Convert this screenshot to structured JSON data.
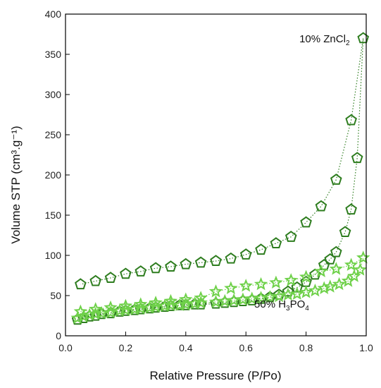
{
  "chart_data": {
    "type": "scatter",
    "xlabel": "Relative Pressure (P/Po)",
    "ylabel": "Volume STP (cm³.g⁻¹)",
    "xlim": [
      0.0,
      1.0
    ],
    "ylim": [
      0,
      400
    ],
    "xticks": [
      "0.0",
      "0.2",
      "0.4",
      "0.6",
      "0.8",
      "1.0"
    ],
    "yticks": [
      "0",
      "50",
      "100",
      "150",
      "200",
      "250",
      "300",
      "350",
      "400"
    ],
    "grid": false,
    "annotations": [
      {
        "parts": [
          "10% ZnCl",
          "2",
          ""
        ],
        "x": 0.945,
        "y": 365
      },
      {
        "parts": [
          "50% H",
          "3",
          "PO",
          "4",
          ""
        ],
        "x": 0.81,
        "y": 35
      }
    ],
    "series": [
      {
        "name": "10% ZnCl2",
        "color": "#2e7d1f",
        "marker": "pentagon",
        "points": [
          {
            "x": 0.04,
            "y": 20
          },
          {
            "x": 0.06,
            "y": 22
          },
          {
            "x": 0.08,
            "y": 24
          },
          {
            "x": 0.1,
            "y": 25
          },
          {
            "x": 0.12,
            "y": 27
          },
          {
            "x": 0.15,
            "y": 28
          },
          {
            "x": 0.18,
            "y": 30
          },
          {
            "x": 0.2,
            "y": 31
          },
          {
            "x": 0.23,
            "y": 32
          },
          {
            "x": 0.25,
            "y": 33
          },
          {
            "x": 0.28,
            "y": 34
          },
          {
            "x": 0.3,
            "y": 35
          },
          {
            "x": 0.33,
            "y": 36
          },
          {
            "x": 0.35,
            "y": 37
          },
          {
            "x": 0.38,
            "y": 38
          },
          {
            "x": 0.4,
            "y": 38
          },
          {
            "x": 0.43,
            "y": 39
          },
          {
            "x": 0.45,
            "y": 39
          },
          {
            "x": 0.5,
            "y": 40
          },
          {
            "x": 0.53,
            "y": 41
          },
          {
            "x": 0.56,
            "y": 42
          },
          {
            "x": 0.59,
            "y": 43
          },
          {
            "x": 0.62,
            "y": 44
          },
          {
            "x": 0.65,
            "y": 46
          },
          {
            "x": 0.68,
            "y": 48
          },
          {
            "x": 0.71,
            "y": 51
          },
          {
            "x": 0.74,
            "y": 55
          },
          {
            "x": 0.77,
            "y": 60
          },
          {
            "x": 0.8,
            "y": 67
          },
          {
            "x": 0.83,
            "y": 76
          },
          {
            "x": 0.86,
            "y": 88
          },
          {
            "x": 0.88,
            "y": 95
          },
          {
            "x": 0.9,
            "y": 104
          },
          {
            "x": 0.93,
            "y": 129
          },
          {
            "x": 0.95,
            "y": 157
          },
          {
            "x": 0.97,
            "y": 221
          },
          {
            "x": 0.99,
            "y": 370
          },
          {
            "x": 0.95,
            "y": 268
          },
          {
            "x": 0.9,
            "y": 194
          },
          {
            "x": 0.85,
            "y": 161
          },
          {
            "x": 0.8,
            "y": 141
          },
          {
            "x": 0.75,
            "y": 123
          },
          {
            "x": 0.7,
            "y": 115
          },
          {
            "x": 0.65,
            "y": 107
          },
          {
            "x": 0.6,
            "y": 101
          },
          {
            "x": 0.55,
            "y": 96
          },
          {
            "x": 0.5,
            "y": 93
          },
          {
            "x": 0.45,
            "y": 91
          },
          {
            "x": 0.4,
            "y": 89
          },
          {
            "x": 0.35,
            "y": 86
          },
          {
            "x": 0.3,
            "y": 84
          },
          {
            "x": 0.25,
            "y": 80
          },
          {
            "x": 0.2,
            "y": 77
          },
          {
            "x": 0.15,
            "y": 72
          },
          {
            "x": 0.1,
            "y": 68
          },
          {
            "x": 0.05,
            "y": 64
          }
        ]
      },
      {
        "name": "50% H3PO4",
        "color": "#6fd14a",
        "marker": "star",
        "points": [
          {
            "x": 0.04,
            "y": 22
          },
          {
            "x": 0.06,
            "y": 24
          },
          {
            "x": 0.08,
            "y": 26
          },
          {
            "x": 0.1,
            "y": 27
          },
          {
            "x": 0.12,
            "y": 28
          },
          {
            "x": 0.15,
            "y": 29
          },
          {
            "x": 0.18,
            "y": 31
          },
          {
            "x": 0.2,
            "y": 32
          },
          {
            "x": 0.23,
            "y": 33
          },
          {
            "x": 0.25,
            "y": 34
          },
          {
            "x": 0.28,
            "y": 35
          },
          {
            "x": 0.3,
            "y": 36
          },
          {
            "x": 0.33,
            "y": 37
          },
          {
            "x": 0.35,
            "y": 38
          },
          {
            "x": 0.38,
            "y": 38
          },
          {
            "x": 0.4,
            "y": 39
          },
          {
            "x": 0.43,
            "y": 40
          },
          {
            "x": 0.45,
            "y": 41
          },
          {
            "x": 0.5,
            "y": 42
          },
          {
            "x": 0.53,
            "y": 43
          },
          {
            "x": 0.56,
            "y": 44
          },
          {
            "x": 0.59,
            "y": 45
          },
          {
            "x": 0.62,
            "y": 46
          },
          {
            "x": 0.65,
            "y": 47
          },
          {
            "x": 0.68,
            "y": 48
          },
          {
            "x": 0.71,
            "y": 49
          },
          {
            "x": 0.74,
            "y": 51
          },
          {
            "x": 0.77,
            "y": 52
          },
          {
            "x": 0.8,
            "y": 54
          },
          {
            "x": 0.83,
            "y": 56
          },
          {
            "x": 0.86,
            "y": 59
          },
          {
            "x": 0.88,
            "y": 61
          },
          {
            "x": 0.91,
            "y": 64
          },
          {
            "x": 0.94,
            "y": 68
          },
          {
            "x": 0.96,
            "y": 74
          },
          {
            "x": 0.98,
            "y": 82
          },
          {
            "x": 0.99,
            "y": 97
          },
          {
            "x": 0.95,
            "y": 88
          },
          {
            "x": 0.9,
            "y": 83
          },
          {
            "x": 0.85,
            "y": 80
          },
          {
            "x": 0.8,
            "y": 73
          },
          {
            "x": 0.75,
            "y": 69
          },
          {
            "x": 0.7,
            "y": 66
          },
          {
            "x": 0.65,
            "y": 64
          },
          {
            "x": 0.6,
            "y": 62
          },
          {
            "x": 0.55,
            "y": 59
          },
          {
            "x": 0.5,
            "y": 55
          },
          {
            "x": 0.45,
            "y": 47
          },
          {
            "x": 0.4,
            "y": 45
          },
          {
            "x": 0.35,
            "y": 43
          },
          {
            "x": 0.3,
            "y": 41
          },
          {
            "x": 0.25,
            "y": 39
          },
          {
            "x": 0.2,
            "y": 37
          },
          {
            "x": 0.15,
            "y": 35
          },
          {
            "x": 0.1,
            "y": 33
          },
          {
            "x": 0.05,
            "y": 30
          }
        ]
      }
    ]
  }
}
